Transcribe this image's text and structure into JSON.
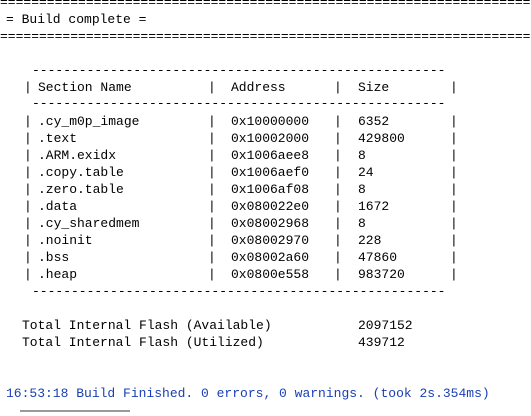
{
  "header": {
    "rule": "======================================================================",
    "title": "= Build complete ="
  },
  "table": {
    "rule": "-----------------------------------------------------",
    "separator": "|",
    "columns": [
      "Section Name",
      "Address",
      "Size"
    ],
    "rows": [
      [
        ".cy_m0p_image",
        "0x10000000",
        6352
      ],
      [
        ".text",
        "0x10002000",
        429800
      ],
      [
        ".ARM.exidx",
        "0x1006aee8",
        8
      ],
      [
        ".copy.table",
        "0x1006aef0",
        24
      ],
      [
        ".zero.table",
        "0x1006af08",
        8
      ],
      [
        ".data",
        "0x080022e0",
        1672
      ],
      [
        ".cy_sharedmem",
        "0x08002968",
        8
      ],
      [
        ".noinit",
        "0x08002970",
        228
      ],
      [
        ".bss",
        "0x08002a60",
        47860
      ],
      [
        ".heap",
        "0x0800e558",
        983720
      ]
    ]
  },
  "totals": [
    {
      "label": "Total Internal Flash (Available)",
      "value": 2097152
    },
    {
      "label": "Total Internal Flash (Utilized)",
      "value": 439712
    }
  ],
  "status": "16:53:18 Build Finished. 0 errors, 0 warnings. (took 2s.354ms)"
}
